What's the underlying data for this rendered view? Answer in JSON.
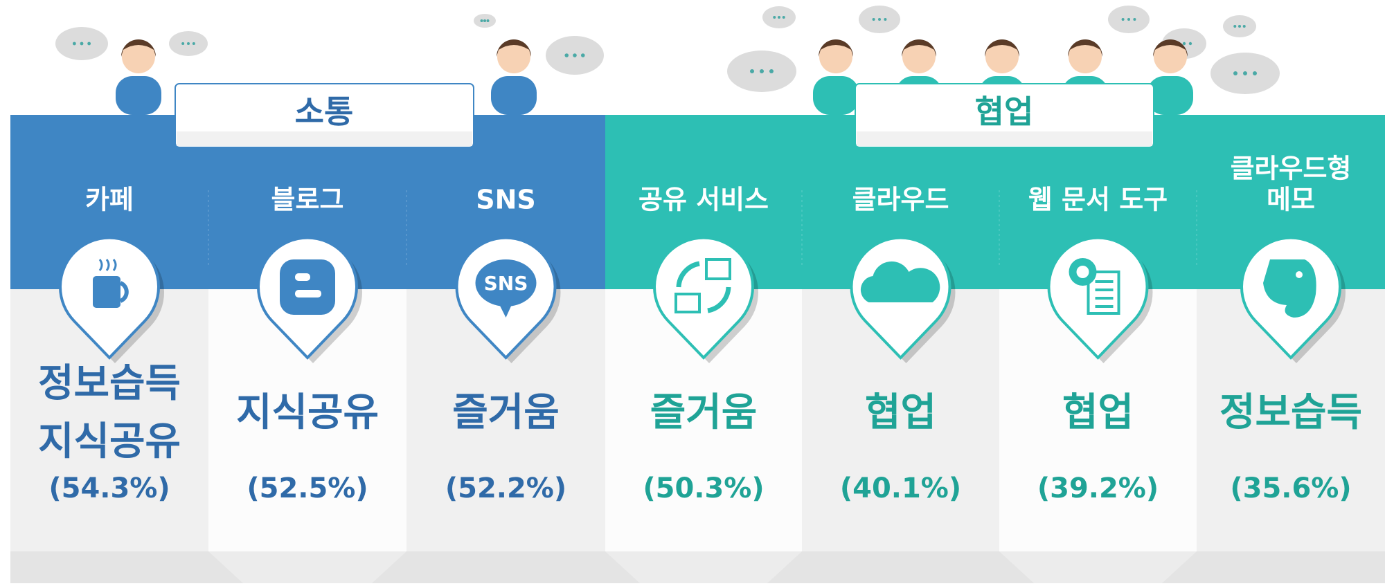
{
  "groups": [
    {
      "title": "소통",
      "items": [
        {
          "name": [
            "카페"
          ],
          "result": [
            "정보습득",
            "지식공유"
          ],
          "share": "(54.3%)"
        },
        {
          "name": [
            "블로그"
          ],
          "result": [
            "지식공유"
          ],
          "share": "(52.5%)"
        },
        {
          "name": [
            "SNS"
          ],
          "result": [
            "즐거움"
          ],
          "share": "(52.2%)"
        }
      ]
    },
    {
      "title": "협업",
      "items": [
        {
          "name": [
            "공유 서비스"
          ],
          "result": [
            "즐거움"
          ],
          "share": "(50.3%)"
        },
        {
          "name": [
            "클라우드"
          ],
          "result": [
            "협업"
          ],
          "share": "(40.1%)"
        },
        {
          "name": [
            "웹 문서 도구"
          ],
          "result": [
            "협업"
          ],
          "share": "(39.2%)"
        },
        {
          "name": [
            "클라우드형",
            "메모"
          ],
          "result": [
            "정보습득"
          ],
          "share": "(35.6%)"
        }
      ]
    }
  ]
}
